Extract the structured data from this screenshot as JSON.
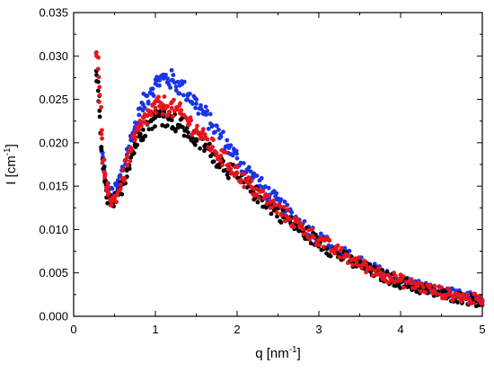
{
  "chart_data": {
    "type": "scatter",
    "title": "",
    "xlabel": "q [nm",
    "xlabel_sup": "-1",
    "xlabel_end": "]",
    "ylabel": "I [cm",
    "ylabel_sup": "-1",
    "ylabel_end": "]",
    "xlim": [
      0,
      5
    ],
    "ylim": [
      0,
      0.035
    ],
    "x_ticks": [
      0,
      1,
      2,
      3,
      4,
      5
    ],
    "y_ticks": [
      0.0,
      0.005,
      0.01,
      0.015,
      0.02,
      0.025,
      0.03,
      0.035
    ],
    "x_tick_labels": [
      "0",
      "1",
      "2",
      "3",
      "4",
      "5"
    ],
    "y_tick_labels": [
      "0.000",
      "0.005",
      "0.010",
      "0.015",
      "0.020",
      "0.025",
      "0.030",
      "0.035"
    ],
    "grid": false,
    "legend": "none",
    "series": [
      {
        "color": "#000000",
        "points": [
          [
            0.28,
            0.0278
          ],
          [
            0.3,
            0.026
          ],
          [
            0.32,
            0.023
          ],
          [
            0.34,
            0.0195
          ],
          [
            0.36,
            0.017
          ],
          [
            0.38,
            0.0155
          ],
          [
            0.4,
            0.0145
          ],
          [
            0.42,
            0.0138
          ],
          [
            0.45,
            0.0132
          ],
          [
            0.48,
            0.013
          ],
          [
            0.5,
            0.0132
          ],
          [
            0.55,
            0.014
          ],
          [
            0.6,
            0.0152
          ],
          [
            0.65,
            0.0168
          ],
          [
            0.7,
            0.0183
          ],
          [
            0.75,
            0.0196
          ],
          [
            0.8,
            0.0207
          ],
          [
            0.85,
            0.0215
          ],
          [
            0.9,
            0.0221
          ],
          [
            0.95,
            0.0226
          ],
          [
            1.0,
            0.0229
          ],
          [
            1.05,
            0.0231
          ],
          [
            1.1,
            0.0231
          ],
          [
            1.15,
            0.0229
          ],
          [
            1.2,
            0.0226
          ],
          [
            1.3,
            0.022
          ],
          [
            1.4,
            0.0212
          ],
          [
            1.5,
            0.0204
          ],
          [
            1.6,
            0.0196
          ],
          [
            1.7,
            0.0187
          ],
          [
            1.8,
            0.0178
          ],
          [
            1.9,
            0.0169
          ],
          [
            2.0,
            0.016
          ],
          [
            2.2,
            0.0143
          ],
          [
            2.4,
            0.0127
          ],
          [
            2.6,
            0.0112
          ],
          [
            2.8,
            0.0098
          ],
          [
            3.0,
            0.0085
          ],
          [
            3.2,
            0.0073
          ],
          [
            3.4,
            0.0063
          ],
          [
            3.6,
            0.0054
          ],
          [
            3.8,
            0.0046
          ],
          [
            4.0,
            0.0039
          ],
          [
            4.2,
            0.0033
          ],
          [
            4.4,
            0.0028
          ],
          [
            4.6,
            0.0024
          ],
          [
            4.8,
            0.002
          ],
          [
            5.0,
            0.0017
          ]
        ]
      },
      {
        "color": "#e8151b",
        "points": [
          [
            0.28,
            0.03
          ],
          [
            0.3,
            0.0285
          ],
          [
            0.32,
            0.0255
          ],
          [
            0.34,
            0.021
          ],
          [
            0.36,
            0.018
          ],
          [
            0.38,
            0.016
          ],
          [
            0.4,
            0.0148
          ],
          [
            0.42,
            0.014
          ],
          [
            0.45,
            0.0135
          ],
          [
            0.48,
            0.0133
          ],
          [
            0.5,
            0.0135
          ],
          [
            0.55,
            0.0145
          ],
          [
            0.6,
            0.0158
          ],
          [
            0.65,
            0.0175
          ],
          [
            0.7,
            0.019
          ],
          [
            0.75,
            0.0203
          ],
          [
            0.8,
            0.0215
          ],
          [
            0.85,
            0.0224
          ],
          [
            0.9,
            0.0231
          ],
          [
            0.95,
            0.0236
          ],
          [
            1.0,
            0.024
          ],
          [
            1.05,
            0.0242
          ],
          [
            1.1,
            0.0243
          ],
          [
            1.15,
            0.0242
          ],
          [
            1.2,
            0.024
          ],
          [
            1.3,
            0.0234
          ],
          [
            1.4,
            0.0225
          ],
          [
            1.5,
            0.0215
          ],
          [
            1.6,
            0.0205
          ],
          [
            1.7,
            0.0195
          ],
          [
            1.8,
            0.0185
          ],
          [
            1.9,
            0.0175
          ],
          [
            2.0,
            0.0165
          ],
          [
            2.2,
            0.0147
          ],
          [
            2.4,
            0.0131
          ],
          [
            2.6,
            0.0116
          ],
          [
            2.8,
            0.0101
          ],
          [
            3.0,
            0.0088
          ],
          [
            3.2,
            0.0076
          ],
          [
            3.4,
            0.0065
          ],
          [
            3.6,
            0.0056
          ],
          [
            3.8,
            0.0048
          ],
          [
            4.0,
            0.0041
          ],
          [
            4.2,
            0.0035
          ],
          [
            4.4,
            0.003
          ],
          [
            4.6,
            0.0025
          ],
          [
            4.8,
            0.0021
          ],
          [
            5.0,
            0.0018
          ]
        ]
      },
      {
        "color": "#1a35e6",
        "points": [
          [
            0.34,
            0.019
          ],
          [
            0.38,
            0.0162
          ],
          [
            0.42,
            0.0145
          ],
          [
            0.45,
            0.014
          ],
          [
            0.5,
            0.0142
          ],
          [
            0.55,
            0.0152
          ],
          [
            0.6,
            0.0168
          ],
          [
            0.65,
            0.0186
          ],
          [
            0.7,
            0.0203
          ],
          [
            0.75,
            0.0218
          ],
          [
            0.8,
            0.0232
          ],
          [
            0.85,
            0.0244
          ],
          [
            0.9,
            0.0254
          ],
          [
            0.95,
            0.0262
          ],
          [
            1.0,
            0.0268
          ],
          [
            1.05,
            0.0272
          ],
          [
            1.1,
            0.0274
          ],
          [
            1.15,
            0.0274
          ],
          [
            1.2,
            0.0272
          ],
          [
            1.3,
            0.0266
          ],
          [
            1.4,
            0.0256
          ],
          [
            1.5,
            0.0245
          ],
          [
            1.6,
            0.0233
          ],
          [
            1.7,
            0.022
          ],
          [
            1.8,
            0.0207
          ],
          [
            1.9,
            0.0194
          ],
          [
            2.0,
            0.0182
          ],
          [
            2.2,
            0.016
          ],
          [
            2.4,
            0.014
          ],
          [
            2.6,
            0.0122
          ],
          [
            2.8,
            0.0106
          ],
          [
            3.0,
            0.0091
          ],
          [
            3.2,
            0.0078
          ],
          [
            3.4,
            0.0067
          ],
          [
            3.6,
            0.0057
          ],
          [
            3.8,
            0.0049
          ],
          [
            4.0,
            0.0042
          ],
          [
            4.2,
            0.0036
          ],
          [
            4.4,
            0.003
          ],
          [
            4.6,
            0.0026
          ],
          [
            4.8,
            0.0022
          ],
          [
            5.0,
            0.0019
          ]
        ]
      }
    ]
  }
}
